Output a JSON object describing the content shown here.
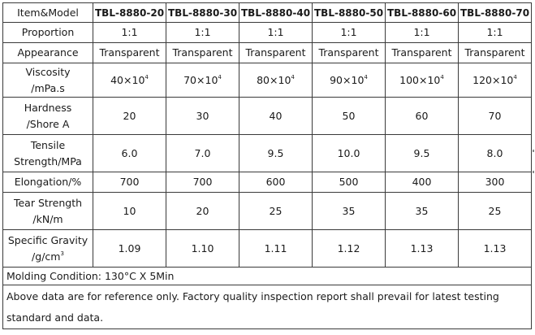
{
  "header": {
    "item_label": "Item&Model",
    "models": [
      "TBL-8880-20",
      "TBL-8880-30",
      "TBL-8880-40",
      "TBL-8880-50",
      "TBL-8880-60",
      "TBL-8880-70"
    ]
  },
  "rows": [
    {
      "label_lines": [
        "Proportion"
      ],
      "values": [
        "1:1",
        "1:1",
        "1:1",
        "1:1",
        "1:1",
        "1:1"
      ]
    },
    {
      "label_lines": [
        "Appearance"
      ],
      "values": [
        "Transparent",
        "Transparent",
        "Transparent",
        "Transparent",
        "Transparent",
        "Transparent"
      ]
    },
    {
      "label_lines": [
        "Viscosity",
        "/mPa.s"
      ],
      "values": [
        {
          "base": "40×10",
          "exp": "4"
        },
        {
          "base": "70×10",
          "exp": "4"
        },
        {
          "base": "80×10",
          "exp": "4"
        },
        {
          "base": "90×10",
          "exp": "4"
        },
        {
          "base": "100×10",
          "exp": "4"
        },
        {
          "base": "120×10",
          "exp": "4"
        }
      ]
    },
    {
      "label_lines": [
        "Hardness",
        "/Shore A"
      ],
      "values": [
        "20",
        "30",
        "40",
        "50",
        "60",
        "70"
      ]
    },
    {
      "label_lines": [
        "Tensile",
        "Strength/MPa"
      ],
      "values": [
        "6.0",
        "7.0",
        "9.5",
        "10.0",
        "9.5",
        "8.0"
      ]
    },
    {
      "label_lines": [
        "Elongation/%"
      ],
      "values": [
        "700",
        "700",
        "600",
        "500",
        "400",
        "300"
      ]
    },
    {
      "label_lines": [
        "Tear Strength",
        "/kN/m"
      ],
      "values": [
        "10",
        "20",
        "25",
        "35",
        "35",
        "25"
      ]
    },
    {
      "label_lines": [
        "Specific Gravity",
        "/g/cm"
      ],
      "label_sup": "3",
      "values": [
        "1.09",
        "1.10",
        "1.11",
        "1.12",
        "1.13",
        "1.13"
      ]
    }
  ],
  "molding_condition": "Molding Condition: 130°C X 5Min",
  "disclaimer": "Above data are for reference only. Factory quality inspection report shall prevail for latest testing standard and data."
}
